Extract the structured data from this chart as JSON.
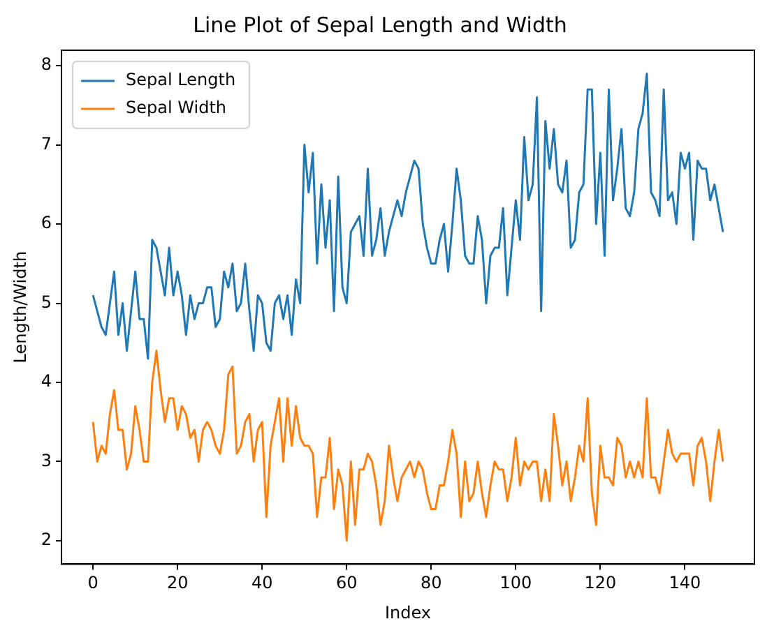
{
  "chart_data": {
    "type": "line",
    "title": "Line Plot of Sepal Length and Width",
    "xlabel": "Index",
    "ylabel": "Length/Width",
    "x": [
      0,
      1,
      2,
      3,
      4,
      5,
      6,
      7,
      8,
      9,
      10,
      11,
      12,
      13,
      14,
      15,
      16,
      17,
      18,
      19,
      20,
      21,
      22,
      23,
      24,
      25,
      26,
      27,
      28,
      29,
      30,
      31,
      32,
      33,
      34,
      35,
      36,
      37,
      38,
      39,
      40,
      41,
      42,
      43,
      44,
      45,
      46,
      47,
      48,
      49,
      50,
      51,
      52,
      53,
      54,
      55,
      56,
      57,
      58,
      59,
      60,
      61,
      62,
      63,
      64,
      65,
      66,
      67,
      68,
      69,
      70,
      71,
      72,
      73,
      74,
      75,
      76,
      77,
      78,
      79,
      80,
      81,
      82,
      83,
      84,
      85,
      86,
      87,
      88,
      89,
      90,
      91,
      92,
      93,
      94,
      95,
      96,
      97,
      98,
      99,
      100,
      101,
      102,
      103,
      104,
      105,
      106,
      107,
      108,
      109,
      110,
      111,
      112,
      113,
      114,
      115,
      116,
      117,
      118,
      119,
      120,
      121,
      122,
      123,
      124,
      125,
      126,
      127,
      128,
      129,
      130,
      131,
      132,
      133,
      134,
      135,
      136,
      137,
      138,
      139,
      140,
      141,
      142,
      143,
      144,
      145,
      146,
      147,
      148,
      149
    ],
    "series": [
      {
        "name": "Sepal Length",
        "color": "#1f77b4",
        "values": [
          5.1,
          4.9,
          4.7,
          4.6,
          5.0,
          5.4,
          4.6,
          5.0,
          4.4,
          4.9,
          5.4,
          4.8,
          4.8,
          4.3,
          5.8,
          5.7,
          5.4,
          5.1,
          5.7,
          5.1,
          5.4,
          5.1,
          4.6,
          5.1,
          4.8,
          5.0,
          5.0,
          5.2,
          5.2,
          4.7,
          4.8,
          5.4,
          5.2,
          5.5,
          4.9,
          5.0,
          5.5,
          4.9,
          4.4,
          5.1,
          5.0,
          4.5,
          4.4,
          5.0,
          5.1,
          4.8,
          5.1,
          4.6,
          5.3,
          5.0,
          7.0,
          6.4,
          6.9,
          5.5,
          6.5,
          5.7,
          6.3,
          4.9,
          6.6,
          5.2,
          5.0,
          5.9,
          6.0,
          6.1,
          5.6,
          6.7,
          5.6,
          5.8,
          6.2,
          5.6,
          5.9,
          6.1,
          6.3,
          6.1,
          6.4,
          6.6,
          6.8,
          6.7,
          6.0,
          5.7,
          5.5,
          5.5,
          5.8,
          6.0,
          5.4,
          6.0,
          6.7,
          6.3,
          5.6,
          5.5,
          5.5,
          6.1,
          5.8,
          5.0,
          5.6,
          5.7,
          5.7,
          6.2,
          5.1,
          5.7,
          6.3,
          5.8,
          7.1,
          6.3,
          6.5,
          7.6,
          4.9,
          7.3,
          6.7,
          7.2,
          6.5,
          6.4,
          6.8,
          5.7,
          5.8,
          6.4,
          6.5,
          7.7,
          7.7,
          6.0,
          6.9,
          5.6,
          7.7,
          6.3,
          6.7,
          7.2,
          6.2,
          6.1,
          6.4,
          7.2,
          7.4,
          7.9,
          6.4,
          6.3,
          6.1,
          7.7,
          6.3,
          6.4,
          6.0,
          6.9,
          6.7,
          6.9,
          5.8,
          6.8,
          6.7,
          6.7,
          6.3,
          6.5,
          6.2,
          5.9
        ]
      },
      {
        "name": "Sepal Width",
        "color": "#ff7f0e",
        "values": [
          3.5,
          3.0,
          3.2,
          3.1,
          3.6,
          3.9,
          3.4,
          3.4,
          2.9,
          3.1,
          3.7,
          3.4,
          3.0,
          3.0,
          4.0,
          4.4,
          3.9,
          3.5,
          3.8,
          3.8,
          3.4,
          3.7,
          3.6,
          3.3,
          3.4,
          3.0,
          3.4,
          3.5,
          3.4,
          3.2,
          3.1,
          3.4,
          4.1,
          4.2,
          3.1,
          3.2,
          3.5,
          3.6,
          3.0,
          3.4,
          3.5,
          2.3,
          3.2,
          3.5,
          3.8,
          3.0,
          3.8,
          3.2,
          3.7,
          3.3,
          3.2,
          3.2,
          3.1,
          2.3,
          2.8,
          2.8,
          3.3,
          2.4,
          2.9,
          2.7,
          2.0,
          3.0,
          2.2,
          2.9,
          2.9,
          3.1,
          3.0,
          2.7,
          2.2,
          2.5,
          3.2,
          2.8,
          2.5,
          2.8,
          2.9,
          3.0,
          2.8,
          3.0,
          2.9,
          2.6,
          2.4,
          2.4,
          2.7,
          2.7,
          3.0,
          3.4,
          3.1,
          2.3,
          3.0,
          2.5,
          2.6,
          3.0,
          2.6,
          2.3,
          2.7,
          3.0,
          2.9,
          2.9,
          2.5,
          2.8,
          3.3,
          2.7,
          3.0,
          2.9,
          3.0,
          3.0,
          2.5,
          2.9,
          2.5,
          3.6,
          3.2,
          2.7,
          3.0,
          2.5,
          2.8,
          3.2,
          3.0,
          3.8,
          2.6,
          2.2,
          3.2,
          2.8,
          2.8,
          2.7,
          3.3,
          3.2,
          2.8,
          3.0,
          2.8,
          3.0,
          2.8,
          3.8,
          2.8,
          2.8,
          2.6,
          3.0,
          3.4,
          3.1,
          3.0,
          3.1,
          3.1,
          3.1,
          2.7,
          3.2,
          3.3,
          3.0,
          2.5,
          3.0,
          3.4,
          3.0
        ]
      }
    ],
    "xlim": [
      -7.45,
      156.45
    ],
    "ylim": [
      1.705,
      8.195
    ],
    "xticks": [
      0,
      20,
      40,
      60,
      80,
      100,
      120,
      140
    ],
    "yticks": [
      2,
      3,
      4,
      5,
      6,
      7,
      8
    ],
    "legend": "top left",
    "line_style": "solid",
    "marker": "none"
  }
}
